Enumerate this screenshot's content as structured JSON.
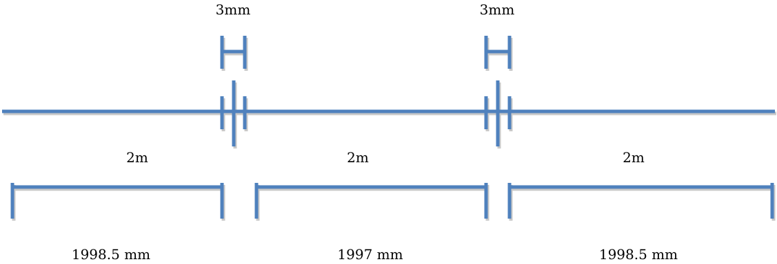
{
  "diagram": {
    "colors": {
      "line": "#4f81bd",
      "shadow": "#c8c8c8",
      "text": "#000000"
    },
    "gap_labels": [
      "3mm",
      "3mm"
    ],
    "nominal_labels": [
      "2m",
      "2m",
      "2m"
    ],
    "actual_labels": [
      "1998.5 mm",
      "1997 mm",
      "1998.5 mm"
    ]
  }
}
